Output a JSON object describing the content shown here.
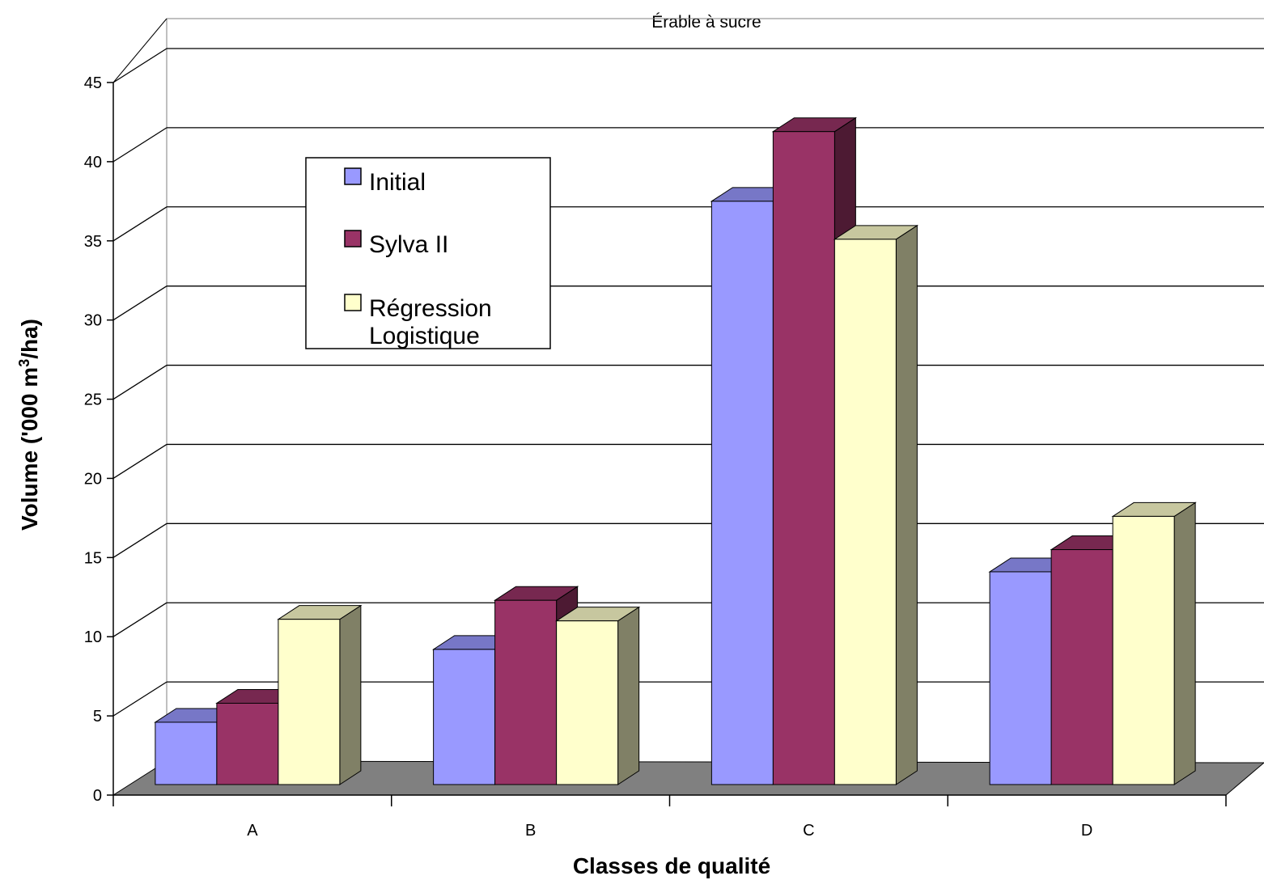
{
  "chart_data": {
    "type": "bar",
    "title": "Érable à sucre",
    "xlabel": "Classes de qualité",
    "ylabel_main": "Volume ('000 m",
    "ylabel_sup": "3",
    "ylabel_tail": "/ha)",
    "categories": [
      "A",
      "B",
      "C",
      "D"
    ],
    "ylim": [
      0,
      45
    ],
    "yticks": [
      0,
      5,
      10,
      15,
      20,
      25,
      30,
      35,
      40,
      45
    ],
    "grid": true,
    "legend_position": "top-left",
    "series": [
      {
        "name": "Initial",
        "color": "#9999ff",
        "values": [
          4.6,
          9.2,
          37.5,
          14.1
        ]
      },
      {
        "name": "Sylva II",
        "color": "#993366",
        "values": [
          5.8,
          12.3,
          41.9,
          15.5
        ]
      },
      {
        "name": "Régression Logistique",
        "name_lines": [
          "Régression",
          "Logistique"
        ],
        "color": "#ffffcc",
        "values": [
          11.1,
          11.0,
          35.1,
          17.6
        ]
      }
    ]
  }
}
